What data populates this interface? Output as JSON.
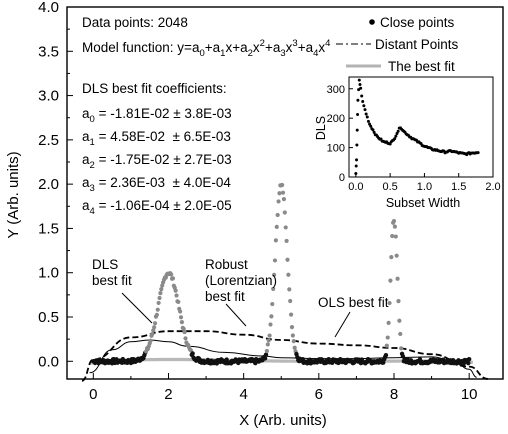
{
  "chart_data": [
    {
      "type": "scatter",
      "xlabel": "X (Arb. units)",
      "ylabel": "Y (Arb. units)",
      "xlim": [
        -0.7,
        10.9
      ],
      "ylim": [
        -0.2,
        4.0
      ],
      "x_ticks": [
        "0",
        "2",
        "4",
        "6",
        "8",
        "10"
      ],
      "y_ticks": [
        "0.0",
        "0.5",
        "1.0",
        "1.5",
        "2.0",
        "2.5",
        "3.0",
        "3.5",
        "4.0"
      ],
      "data_info": "Data points:  2048",
      "model_function": {
        "prefix": "Model function: y=a",
        "s0": "0",
        "p1": "+a",
        "s1": "1",
        "p2": "x+a",
        "s2": "2",
        "p3": "x",
        "e2": "2",
        "p4": "+a",
        "s3": "3",
        "p5": "x",
        "e3": "3",
        "p6": "+a",
        "s4": "4",
        "p7": "x",
        "e4": "4"
      },
      "coefficients_title": "DLS best fit coefficients:",
      "coefficients": [
        {
          "name": "a",
          "sub": "0",
          "value": " = -1.81E-02 ± 3.8E-03"
        },
        {
          "name": "a",
          "sub": "1",
          "value": " = 4.58E-02  ± 6.5E-03"
        },
        {
          "name": "a",
          "sub": "2",
          "value": " = -1.75E-02 ± 2.7E-03"
        },
        {
          "name": "a",
          "sub": "3",
          "value": " = 2.36E-03  ± 4.0E-04"
        },
        {
          "name": "a",
          "sub": "4",
          "value": " = -1.06E-04 ± 2.0E-05"
        }
      ],
      "legend": [
        "Close points",
        "Distant Points",
        "The best fit"
      ],
      "legend_placement": "top-right",
      "annotations": {
        "dls_1": "DLS",
        "dls_2": "best fit",
        "robust_1": "Robust",
        "robust_2": "(Lorentzian)",
        "robust_3": "best fit",
        "ols": "OLS best fit"
      },
      "signal": {
        "x_range": [
          0,
          10
        ],
        "baseline": 0.0,
        "peaks": [
          {
            "center": 2,
            "height": 1.0
          },
          {
            "center": 5,
            "height": 2.0
          },
          {
            "center": 8,
            "height": 1.6
          }
        ]
      },
      "fits": {
        "dls_coefficients": [
          -0.0181,
          0.0458,
          -0.0175,
          0.00236,
          -0.000106
        ],
        "ols_points": [
          [
            -0.3,
            -0.22
          ],
          [
            0,
            0.02
          ],
          [
            1,
            0.27
          ],
          [
            2,
            0.34
          ],
          [
            3,
            0.34
          ],
          [
            4,
            0.3
          ],
          [
            5,
            0.24
          ],
          [
            6,
            0.2
          ],
          [
            7,
            0.18
          ],
          [
            8,
            0.15
          ],
          [
            9,
            0.08
          ],
          [
            10,
            -0.06
          ],
          [
            10.5,
            -0.2
          ]
        ],
        "robust_points": [
          [
            -0.1,
            -0.13
          ],
          [
            0.5,
            0.13
          ],
          [
            1,
            0.22
          ],
          [
            1.5,
            0.24
          ],
          [
            2,
            0.22
          ],
          [
            2.5,
            0.17
          ],
          [
            3.5,
            0.1
          ],
          [
            4.5,
            0.06
          ],
          [
            5,
            0.04
          ],
          [
            6,
            0.03
          ],
          [
            7,
            0.03
          ],
          [
            8,
            0.04
          ],
          [
            9,
            0.05
          ],
          [
            9.6,
            0.0
          ],
          [
            10,
            -0.09
          ],
          [
            10.2,
            -0.18
          ]
        ]
      }
    },
    {
      "type": "scatter",
      "xlabel": "Subset Width",
      "ylabel": "DLS",
      "xlim": [
        -0.1,
        2.0
      ],
      "ylim": [
        0,
        340
      ],
      "x_ticks": [
        "0.0",
        "0.5",
        "1.0",
        "1.5",
        "2.0"
      ],
      "y_ticks": [
        "0",
        "100",
        "200",
        "300"
      ],
      "points": [
        [
          0.0,
          10
        ],
        [
          0.01,
          60
        ],
        [
          0.02,
          160
        ],
        [
          0.03,
          260
        ],
        [
          0.05,
          330
        ],
        [
          0.07,
          300
        ],
        [
          0.1,
          255
        ],
        [
          0.15,
          215
        ],
        [
          0.2,
          180
        ],
        [
          0.3,
          140
        ],
        [
          0.4,
          120
        ],
        [
          0.5,
          115
        ],
        [
          0.55,
          125
        ],
        [
          0.6,
          150
        ],
        [
          0.65,
          170
        ],
        [
          0.7,
          155
        ],
        [
          0.8,
          135
        ],
        [
          0.9,
          120
        ],
        [
          1.0,
          105
        ],
        [
          1.1,
          95
        ],
        [
          1.2,
          90
        ],
        [
          1.3,
          85
        ],
        [
          1.4,
          88
        ],
        [
          1.5,
          82
        ],
        [
          1.6,
          78
        ],
        [
          1.7,
          82
        ],
        [
          1.8,
          85
        ]
      ]
    }
  ]
}
